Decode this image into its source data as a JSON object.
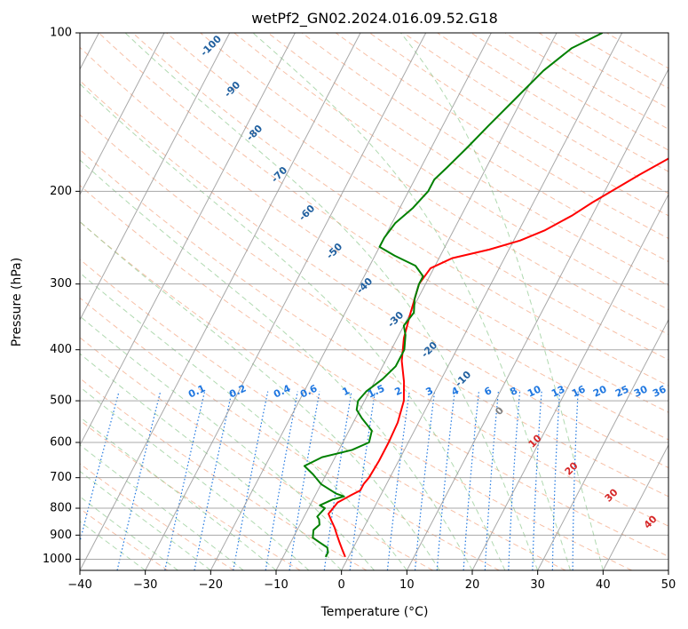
{
  "chart_data": {
    "type": "line",
    "title": "wetPf2_GN02.2024.016.09.52.G18",
    "xlabel": "Temperature (°C)",
    "ylabel": "Pressure (hPa)",
    "xlim": [
      -40,
      50
    ],
    "ylim": [
      1050,
      100
    ],
    "y_scale": "log",
    "grid": true,
    "x_ticks": [
      "−40",
      "−30",
      "−20",
      "−10",
      "0",
      "10",
      "20",
      "30",
      "40",
      "50"
    ],
    "x_tick_values": [
      -40,
      -30,
      -20,
      -10,
      0,
      10,
      20,
      30,
      40,
      50
    ],
    "y_ticks": [
      "100",
      "200",
      "300",
      "400",
      "500",
      "600",
      "700",
      "800",
      "900",
      "1000"
    ],
    "y_tick_values": [
      100,
      200,
      300,
      400,
      500,
      600,
      700,
      800,
      900,
      1000
    ],
    "series": [
      {
        "color": "#ff0000",
        "points": [
          [
            -0.5,
            990
          ],
          [
            -1.5,
            960
          ],
          [
            -2.5,
            930
          ],
          [
            -3.5,
            900
          ],
          [
            -4.5,
            870
          ],
          [
            -5.5,
            845
          ],
          [
            -6.5,
            820
          ],
          [
            -6,
            780
          ],
          [
            -4.5,
            755
          ],
          [
            -3.5,
            740
          ],
          [
            -3.5,
            720
          ],
          [
            -3.2,
            700
          ],
          [
            -3,
            650
          ],
          [
            -3,
            600
          ],
          [
            -3.2,
            550
          ],
          [
            -4,
            500
          ],
          [
            -5.5,
            460
          ],
          [
            -7.5,
            420
          ],
          [
            -9,
            380
          ],
          [
            -10,
            340
          ],
          [
            -11,
            300
          ],
          [
            -10.5,
            280
          ],
          [
            -8,
            268
          ],
          [
            -3,
            258
          ],
          [
            1,
            248
          ],
          [
            4,
            237
          ],
          [
            7,
            222
          ],
          [
            9,
            210
          ],
          [
            11,
            200
          ],
          [
            14,
            186
          ],
          [
            18,
            170
          ],
          [
            21,
            158
          ],
          [
            24,
            145
          ],
          [
            26,
            135
          ],
          [
            29,
            124
          ],
          [
            32,
            114
          ],
          [
            34,
            107
          ],
          [
            36,
            100
          ]
        ]
      },
      {
        "color": "#008000",
        "points": [
          [
            -3.5,
            990
          ],
          [
            -3.5,
            970
          ],
          [
            -4,
            950
          ],
          [
            -5.5,
            930
          ],
          [
            -7,
            910
          ],
          [
            -7.5,
            880
          ],
          [
            -7,
            860
          ],
          [
            -7.5,
            840
          ],
          [
            -8,
            830
          ],
          [
            -7.5,
            800
          ],
          [
            -8.5,
            790
          ],
          [
            -7,
            770
          ],
          [
            -5.5,
            760
          ],
          [
            -7,
            750
          ],
          [
            -10,
            720
          ],
          [
            -12,
            690
          ],
          [
            -14,
            665
          ],
          [
            -12,
            640
          ],
          [
            -8,
            620
          ],
          [
            -6,
            600
          ],
          [
            -6.5,
            570
          ],
          [
            -9,
            540
          ],
          [
            -10.5,
            520
          ],
          [
            -11,
            500
          ],
          [
            -10.5,
            480
          ],
          [
            -9,
            455
          ],
          [
            -8,
            430
          ],
          [
            -8,
            400
          ],
          [
            -9,
            375
          ],
          [
            -10,
            360
          ],
          [
            -9.5,
            340
          ],
          [
            -10.5,
            320
          ],
          [
            -11,
            300
          ],
          [
            -11,
            290
          ],
          [
            -13,
            277
          ],
          [
            -17,
            265
          ],
          [
            -20,
            255
          ],
          [
            -20,
            245
          ],
          [
            -19.5,
            230
          ],
          [
            -18,
            215
          ],
          [
            -17,
            200
          ],
          [
            -17,
            190
          ],
          [
            -16,
            180
          ],
          [
            -14.5,
            165
          ],
          [
            -13,
            150
          ],
          [
            -11,
            133
          ],
          [
            -9,
            118
          ],
          [
            -6.5,
            107
          ],
          [
            -3,
            100
          ]
        ]
      }
    ],
    "dry_adiabat_labels": [
      "-100",
      "-90",
      "-80",
      "-70",
      "-60",
      "-50",
      "-40",
      "-30",
      "-20",
      "-10",
      "0",
      "10",
      "20",
      "30",
      "40"
    ],
    "mixing_ratio_labels": [
      "0.1",
      "0.2",
      "0.4",
      "0.6",
      "1",
      "1.5",
      "2",
      "3",
      "4",
      "6",
      "8",
      "10",
      "13",
      "16",
      "20",
      "25",
      "30",
      "36"
    ],
    "colors": {
      "temperature": "#ff0000",
      "dewpoint": "#008000",
      "dry_adiabat": "#f4a582",
      "moist_adiabat": "#8fc98f",
      "isotherm": "#999999",
      "isobar": "#999999",
      "mixing_ratio": "#1f77e0",
      "label_cold": "#1f5f9f",
      "label_zero": "#808080",
      "label_warm": "#d62728"
    }
  }
}
